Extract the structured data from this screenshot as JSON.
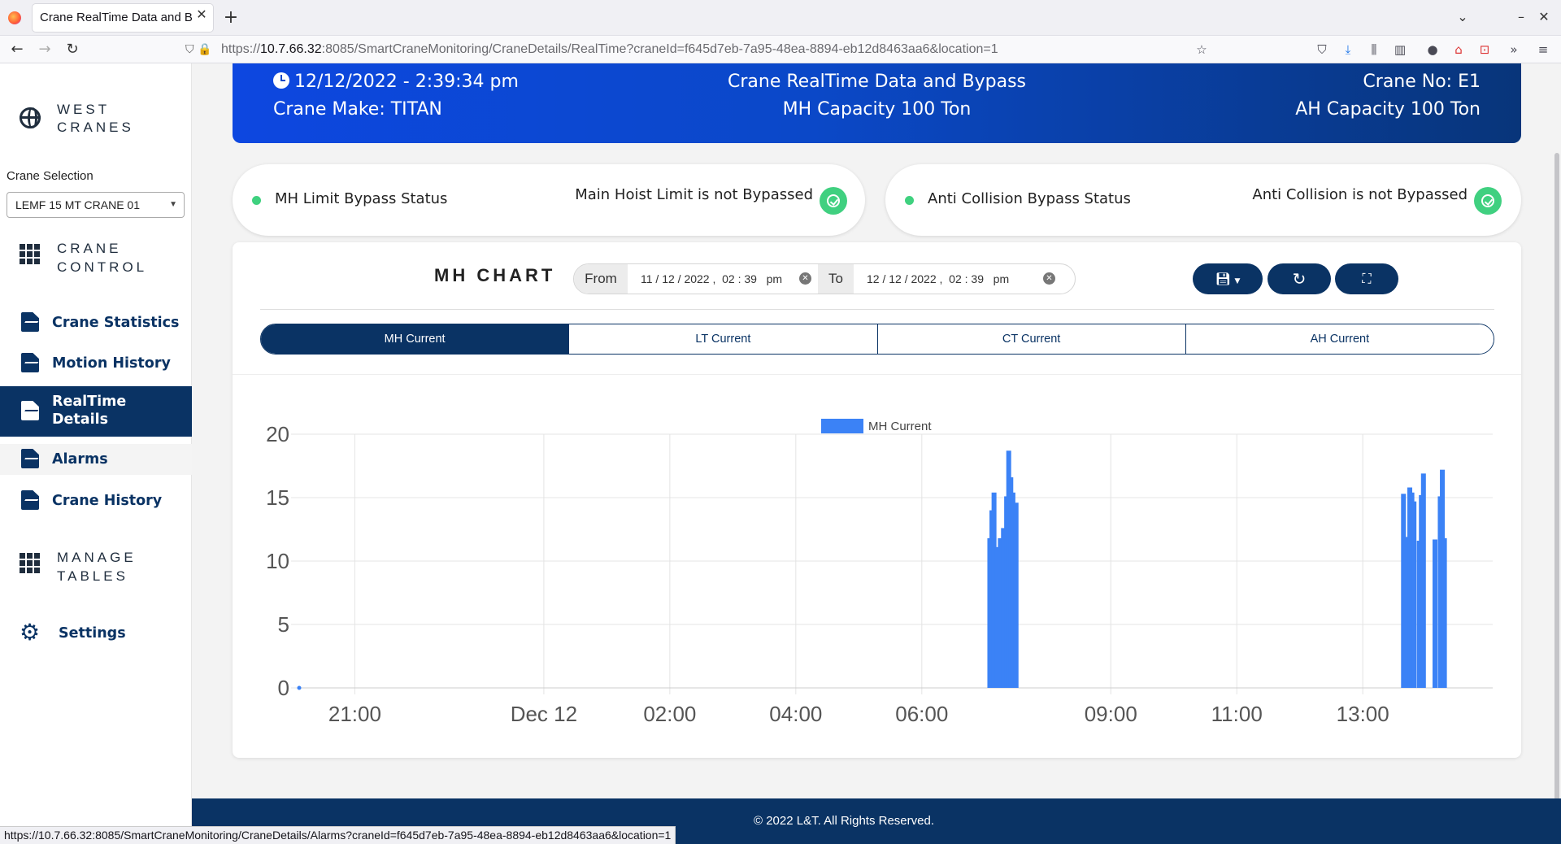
{
  "browser": {
    "tab_title": "Crane RealTime Data and B",
    "url_prefix": "https://",
    "url_host": "10.7.66.32",
    "url_rest": ":8085/SmartCraneMonitoring/CraneDetails/RealTime?craneId=f645d7eb-7a95-48ea-8894-eb12d8463aa6&location=1",
    "status_url": "https://10.7.66.32:8085/SmartCraneMonitoring/CraneDetails/Alarms?craneId=f645d7eb-7a95-48ea-8894-eb12d8463aa6&location=1"
  },
  "sidebar": {
    "brand": "WEST\nCRANES",
    "crane_selection_label": "Crane Selection",
    "crane_selected": "LEMF 15 MT CRANE 01",
    "crane_control": "CRANE\nCONTROL",
    "items": [
      {
        "label": "Crane Statistics"
      },
      {
        "label": "Motion History"
      },
      {
        "label": "RealTime\nDetails"
      },
      {
        "label": "Alarms"
      },
      {
        "label": "Crane History"
      }
    ],
    "manage_tables": "MANAGE\nTABLES",
    "settings": "Settings"
  },
  "header": {
    "datetime": "12/12/2022 - 2:39:34 pm",
    "crane_make": "Crane Make: TITAN",
    "title": "Crane RealTime Data and Bypass",
    "mh_capacity": "MH Capacity 100 Ton",
    "crane_no": "Crane No: E1",
    "ah_capacity": "AH Capacity 100 Ton"
  },
  "status": {
    "mh_label": "MH Limit Bypass Status",
    "mh_value": "Main Hoist Limit is not Bypassed",
    "ac_label": "Anti Collision Bypass Status",
    "ac_value": "Anti Collision is not Bypassed"
  },
  "chart_panel": {
    "title": "MH CHART",
    "from_label": "From",
    "from_value": "11 / 12 / 2022 ,  02 : 39   pm",
    "to_label": "To",
    "to_value": "12 / 12 / 2022 ,  02 : 39   pm",
    "tabs": [
      "MH Current",
      "LT Current",
      "CT Current",
      "AH Current"
    ],
    "active_tab": 0
  },
  "chart_data": {
    "type": "bar",
    "legend": "MH Current",
    "color": "#3b82f6",
    "ylim": [
      0,
      20
    ],
    "yticks": [
      0,
      5,
      10,
      15,
      20
    ],
    "xlim": [
      "2022-12-11 20:07",
      "2022-12-12 14:56"
    ],
    "xticks": [
      {
        "t": "2022-12-11 21:00",
        "label": "21:00"
      },
      {
        "t": "2022-12-12 00:00",
        "label": "Dec 12"
      },
      {
        "t": "2022-12-12 02:00",
        "label": "02:00"
      },
      {
        "t": "2022-12-12 04:00",
        "label": "04:00"
      },
      {
        "t": "2022-12-12 06:00",
        "label": "06:00"
      },
      {
        "t": "2022-12-12 09:00",
        "label": "09:00"
      },
      {
        "t": "2022-12-12 11:00",
        "label": "11:00"
      },
      {
        "t": "2022-12-12 13:00",
        "label": "13:00"
      }
    ],
    "points": [
      {
        "t": "2022-12-11 20:07",
        "v": 0
      },
      {
        "t": "2022-12-12 07:04",
        "v": 11.8
      },
      {
        "t": "2022-12-12 07:06",
        "v": 14.0
      },
      {
        "t": "2022-12-12 07:08",
        "v": 15.4
      },
      {
        "t": "2022-12-12 07:11",
        "v": 11.1
      },
      {
        "t": "2022-12-12 07:14",
        "v": 11.8
      },
      {
        "t": "2022-12-12 07:17",
        "v": 12.6
      },
      {
        "t": "2022-12-12 07:20",
        "v": 15.1
      },
      {
        "t": "2022-12-12 07:22",
        "v": 18.7
      },
      {
        "t": "2022-12-12 07:24",
        "v": 16.6
      },
      {
        "t": "2022-12-12 07:26",
        "v": 15.4
      },
      {
        "t": "2022-12-12 07:29",
        "v": 14.6
      },
      {
        "t": "2022-12-12 13:38",
        "v": 15.3
      },
      {
        "t": "2022-12-12 13:41",
        "v": 11.9
      },
      {
        "t": "2022-12-12 13:44",
        "v": 15.8
      },
      {
        "t": "2022-12-12 13:46",
        "v": 15.4
      },
      {
        "t": "2022-12-12 13:48",
        "v": 14.7
      },
      {
        "t": "2022-12-12 13:53",
        "v": 11.6
      },
      {
        "t": "2022-12-12 13:55",
        "v": 15.2
      },
      {
        "t": "2022-12-12 13:57",
        "v": 16.9
      },
      {
        "t": "2022-12-12 14:08",
        "v": 11.7
      },
      {
        "t": "2022-12-12 14:13",
        "v": 15.1
      },
      {
        "t": "2022-12-12 14:15",
        "v": 17.2
      },
      {
        "t": "2022-12-12 14:17",
        "v": 11.8
      }
    ]
  },
  "footer": "© 2022 L&T. All Rights Reserved."
}
